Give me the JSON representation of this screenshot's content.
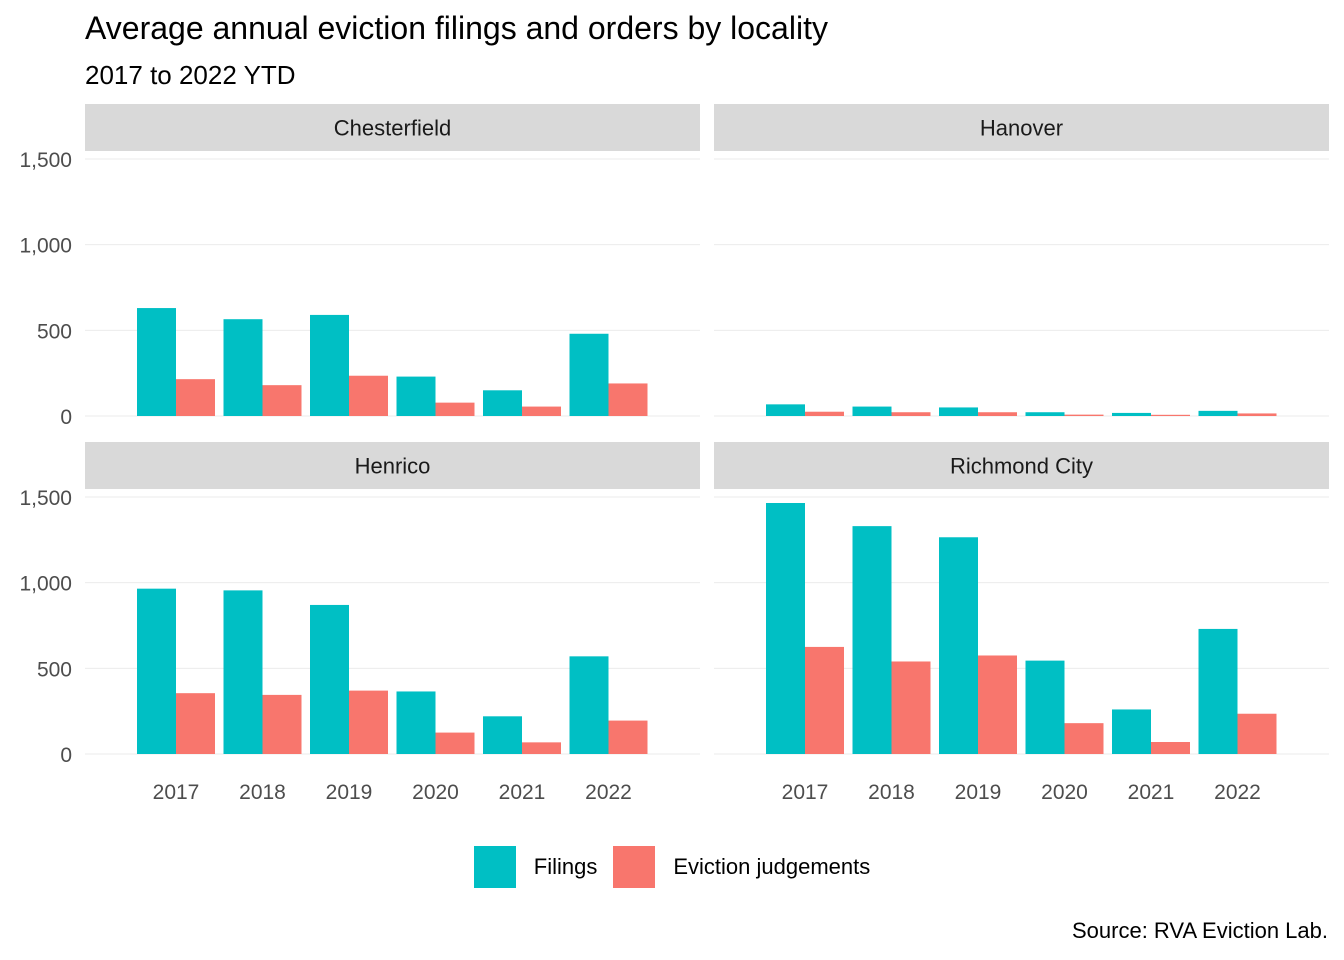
{
  "title": "Average annual eviction filings and orders by locality",
  "subtitle": "2017 to 2022 YTD",
  "caption": "Source: RVA Eviction Lab.",
  "colors": {
    "filings": "#00BFC4",
    "judgements": "#F8766D",
    "strip": "#D9D9D9",
    "grid": "#EBEBEB",
    "axis_text": "#4D4D4D"
  },
  "chart_data": {
    "type": "bar",
    "layout": "facet-wrap 2x2",
    "categories": [
      "2017",
      "2018",
      "2019",
      "2020",
      "2021",
      "2022"
    ],
    "ylim": [
      0,
      1800
    ],
    "yticks": [
      0,
      500,
      1000,
      1500
    ],
    "ytick_labels": [
      "0",
      "500",
      "1,000",
      "1,500"
    ],
    "grid": true,
    "legend": "bottom",
    "series_names": [
      "Filings",
      "Eviction judgements"
    ],
    "panels": [
      {
        "name": "Chesterfield",
        "series": [
          {
            "name": "Filings",
            "values": [
              630,
              565,
              590,
              230,
              150,
              480
            ]
          },
          {
            "name": "Eviction judgements",
            "values": [
              215,
              180,
              235,
              78,
              55,
              190
            ]
          }
        ]
      },
      {
        "name": "Hanover",
        "series": [
          {
            "name": "Filings",
            "values": [
              68,
              55,
              50,
              22,
              18,
              30
            ]
          },
          {
            "name": "Eviction judgements",
            "values": [
              25,
              22,
              22,
              8,
              7,
              15
            ]
          }
        ]
      },
      {
        "name": "Henrico",
        "series": [
          {
            "name": "Filings",
            "values": [
              965,
              955,
              870,
              365,
              220,
              570
            ]
          },
          {
            "name": "Eviction judgements",
            "values": [
              355,
              345,
              370,
              125,
              68,
              195
            ]
          }
        ]
      },
      {
        "name": "Richmond City",
        "series": [
          {
            "name": "Filings",
            "values": [
              1465,
              1330,
              1265,
              545,
              260,
              730
            ]
          },
          {
            "name": "Eviction judgements",
            "values": [
              625,
              540,
              575,
              180,
              70,
              235
            ]
          }
        ]
      }
    ]
  }
}
